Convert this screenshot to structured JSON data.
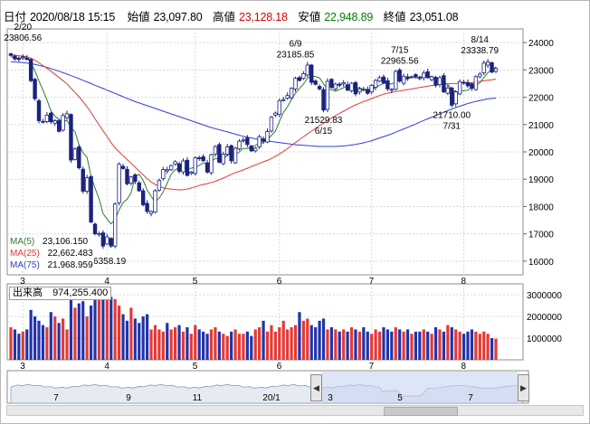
{
  "header": {
    "date_label": "日付",
    "datetime": "2020/08/18 15:15",
    "open_label": "始値",
    "open": "23,097.80",
    "high_label": "高値",
    "high": "23,128.18",
    "low_label": "安値",
    "low": "22,948.89",
    "close_label": "終値",
    "close": "23,051.08"
  },
  "colors": {
    "high": "#e00000",
    "low": "#008000",
    "up_candle": "#ffffff",
    "down_candle": "#1a237e",
    "ma5": "#2e7d32",
    "ma25": "#e53935",
    "ma75": "#3040d0",
    "vol_up": "#e53935",
    "vol_down": "#2233aa"
  },
  "legend": {
    "ma5_label": "MA(5)",
    "ma5_value": "23,106.150",
    "ma25_label": "MA(25)",
    "ma25_value": "22,662.483",
    "ma75_label": "MA(75)",
    "ma75_value": "21,968.959"
  },
  "volume_panel": {
    "label": "出来高",
    "value": "974,255.400"
  },
  "navigator": {
    "ticks": [
      "7",
      "9",
      "11",
      "20/1",
      "3",
      "5",
      "7"
    ],
    "prev_icon": "triangle-left-icon",
    "next_icon": "triangle-right-icon"
  },
  "chart_data": {
    "type": "candlestick",
    "x_ticks": [
      "3",
      "4",
      "5",
      "6",
      "7",
      "8"
    ],
    "ylim": [
      15500,
      24500
    ],
    "y_ticks": [
      16000,
      17000,
      18000,
      19000,
      20000,
      21000,
      22000,
      23000,
      24000
    ],
    "volume_ylim": [
      0,
      3500000
    ],
    "volume_ticks": [
      1000000,
      2000000,
      3000000
    ],
    "annotations": [
      {
        "date": "2/20",
        "value": "23806.56",
        "text_above": "2/20",
        "text_below": "23806.56"
      },
      {
        "date": "6/9",
        "value": "23185.85",
        "text_above": "6/9",
        "text_below": "23185.85"
      },
      {
        "date": "7/15",
        "value": "22965.56",
        "text_above": "7/15",
        "text_below": "22965.56"
      },
      {
        "date": "8/14",
        "value": "23338.79",
        "text_above": "8/14",
        "text_below": "23338.79"
      },
      {
        "date": "6/15",
        "value": "21529.83",
        "text_above": "21529.83",
        "text_below": "6/15"
      },
      {
        "date": "7/31",
        "value": "21710.00",
        "text_above": "21710.00",
        "text_below": "7/31"
      },
      {
        "date": "",
        "value": "16358.19",
        "text_above": "",
        "text_below": "16358.19"
      }
    ],
    "closes": [
      23530,
      23400,
      23386,
      23479,
      23386,
      22605,
      21948,
      21140,
      21082,
      21344,
      21100,
      21142,
      20749,
      21329,
      21395,
      19699,
      20109,
      19416,
      18560,
      19050,
      17431,
      17002,
      17011,
      16553,
      16887,
      16552,
      18092,
      19546,
      19389,
      18832,
      19084,
      18917,
      18576,
      18065,
      17819,
      17820,
      18576,
      18950,
      19353,
      19345,
      19498,
      19638,
      19290,
      19669,
      19138,
      19262,
      19783,
      19771,
      19675,
      19262,
      19897,
      20193,
      19619,
      19914,
      20179,
      19674,
      20133,
      20390,
      20433,
      20267,
      20037,
      20133,
      20552,
      20388,
      20741,
      21271,
      21419,
      21877,
      21916,
      22062,
      22325,
      22695,
      22613,
      22863,
      23178,
      22545,
      22472,
      22305,
      21530,
      22582,
      22355,
      22479,
      22437,
      22534,
      22259,
      22513,
      22121,
      22306,
      22288,
      22145,
      22438,
      22614,
      22715,
      22529,
      22306,
      22291,
      22945,
      22587,
      22770,
      22697,
      22752,
      22751,
      22715,
      22884,
      22717,
      22751,
      22438,
      22715,
      22195,
      22340,
      21710,
      22195,
      22573,
      22514,
      22418,
      22329,
      22750,
      22843,
      23249,
      23289,
      22920,
      23051
    ],
    "ma5": [
      23480,
      23450,
      23420,
      23440,
      23440,
      23260,
      22960,
      22600,
      22270,
      21900,
      21500,
      21310,
      21180,
      21120,
      21150,
      20880,
      20740,
      20260,
      19970,
      19800,
      19100,
      18680,
      18280,
      17740,
      17540,
      17370,
      17520,
      17880,
      18140,
      18270,
      18500,
      19080,
      19180,
      18960,
      18600,
      18380,
      18160,
      18310,
      18530,
      18860,
      19180,
      19340,
      19430,
      19450,
      19390,
      19400,
      19450,
      19500,
      19600,
      19530,
      19640,
      19760,
      19720,
      19720,
      19890,
      19910,
      19900,
      20000,
      20130,
      20120,
      20180,
      20240,
      20310,
      20340,
      20450,
      20600,
      20760,
      21120,
      21440,
      21650,
      21920,
      22150,
      22320,
      22480,
      22700,
      22770,
      22760,
      22710,
      22490,
      22290,
      22280,
      22220,
      22280,
      22350,
      22430,
      22450,
      22370,
      22340,
      22290,
      22270,
      22260,
      22360,
      22440,
      22510,
      22510,
      22480,
      22560,
      22620,
      22660,
      22660,
      22750,
      22710,
      22740,
      22760,
      22760,
      22760,
      22700,
      22700,
      22560,
      22470,
      22280,
      22200,
      22190,
      22250,
      22250,
      22360,
      22420,
      22530,
      22720,
      22900,
      23000,
      23106
    ],
    "ma25": [
      23550,
      23540,
      23520,
      23500,
      23480,
      23430,
      23360,
      23260,
      23160,
      23060,
      22950,
      22840,
      22720,
      22610,
      22490,
      22330,
      22180,
      22020,
      21840,
      21650,
      21440,
      21210,
      20990,
      20770,
      20560,
      20340,
      20150,
      20000,
      19860,
      19720,
      19580,
      19440,
      19300,
      19160,
      19020,
      18900,
      18810,
      18750,
      18690,
      18650,
      18640,
      18620,
      18610,
      18620,
      18640,
      18680,
      18720,
      18770,
      18810,
      18840,
      18880,
      18920,
      18980,
      19040,
      19110,
      19180,
      19240,
      19290,
      19340,
      19400,
      19460,
      19520,
      19580,
      19640,
      19690,
      19760,
      19840,
      19920,
      20020,
      20120,
      20230,
      20340,
      20450,
      20560,
      20660,
      20760,
      20860,
      20960,
      21050,
      21150,
      21240,
      21330,
      21410,
      21490,
      21570,
      21650,
      21720,
      21780,
      21840,
      21890,
      21950,
      22010,
      22060,
      22110,
      22150,
      22180,
      22210,
      22230,
      22260,
      22280,
      22300,
      22330,
      22360,
      22380,
      22410,
      22430,
      22450,
      22470,
      22480,
      22490,
      22500,
      22500,
      22510,
      22520,
      22520,
      22530,
      22560,
      22580,
      22600,
      22620,
      22640,
      22662
    ],
    "ma75": [
      23300,
      23290,
      23280,
      23270,
      23250,
      23230,
      23200,
      23170,
      23130,
      23090,
      23050,
      23000,
      22950,
      22900,
      22850,
      22790,
      22740,
      22680,
      22620,
      22560,
      22500,
      22440,
      22380,
      22320,
      22260,
      22200,
      22140,
      22080,
      22020,
      21960,
      21900,
      21840,
      21790,
      21740,
      21690,
      21640,
      21590,
      21540,
      21490,
      21440,
      21390,
      21340,
      21290,
      21240,
      21190,
      21140,
      21090,
      21040,
      20990,
      20940,
      20890,
      20850,
      20810,
      20770,
      20730,
      20690,
      20650,
      20610,
      20570,
      20540,
      20510,
      20480,
      20450,
      20420,
      20400,
      20380,
      20360,
      20340,
      20320,
      20300,
      20280,
      20260,
      20250,
      20240,
      20230,
      20220,
      20210,
      20200,
      20200,
      20200,
      20200,
      20200,
      20210,
      20220,
      20230,
      20250,
      20270,
      20300,
      20330,
      20370,
      20410,
      20460,
      20510,
      20560,
      20610,
      20660,
      20720,
      20780,
      20840,
      20900,
      20960,
      21020,
      21090,
      21150,
      21210,
      21270,
      21330,
      21390,
      21450,
      21510,
      21570,
      21620,
      21670,
      21720,
      21770,
      21810,
      21850,
      21880,
      21910,
      21940,
      21955,
      21968
    ],
    "volume": [
      1500000,
      1400000,
      1200000,
      1300000,
      1400000,
      2300000,
      2000000,
      1800000,
      1600000,
      1500000,
      2200000,
      2000000,
      1700000,
      1900000,
      1400000,
      2900000,
      2400000,
      2600000,
      2700000,
      2000000,
      2500000,
      3300000,
      3100000,
      2800000,
      3000000,
      2900000,
      2800000,
      2500000,
      2100000,
      1800000,
      2400000,
      1900000,
      1700000,
      2000000,
      2100000,
      1400000,
      1600000,
      1400000,
      1300000,
      1700000,
      1400000,
      1500000,
      1600000,
      1300000,
      1500000,
      1200000,
      1600000,
      1400000,
      1300000,
      1200000,
      1400000,
      1500000,
      1300000,
      1200000,
      1100000,
      1300000,
      1400000,
      1200000,
      1200000,
      1300000,
      1100000,
      1400000,
      1500000,
      1800000,
      1300000,
      1600000,
      1300000,
      1500000,
      1800000,
      1400000,
      1500000,
      1600000,
      2200000,
      1800000,
      1900000,
      1600000,
      1500000,
      1800000,
      1900000,
      1400000,
      1500000,
      1400000,
      1300000,
      1400000,
      1300000,
      1500000,
      1400000,
      1300000,
      1500000,
      1300000,
      1200000,
      1400000,
      1300000,
      1500000,
      1400000,
      1300000,
      1500000,
      1400000,
      1300000,
      1400000,
      1200000,
      1300000,
      1300000,
      1400000,
      1300000,
      1200000,
      1500000,
      1400000,
      1300000,
      1600000,
      1500000,
      1400000,
      1300000,
      1200000,
      1300000,
      1400000,
      1300000,
      1200000,
      1300000,
      1200000,
      1000000,
      974255
    ]
  }
}
